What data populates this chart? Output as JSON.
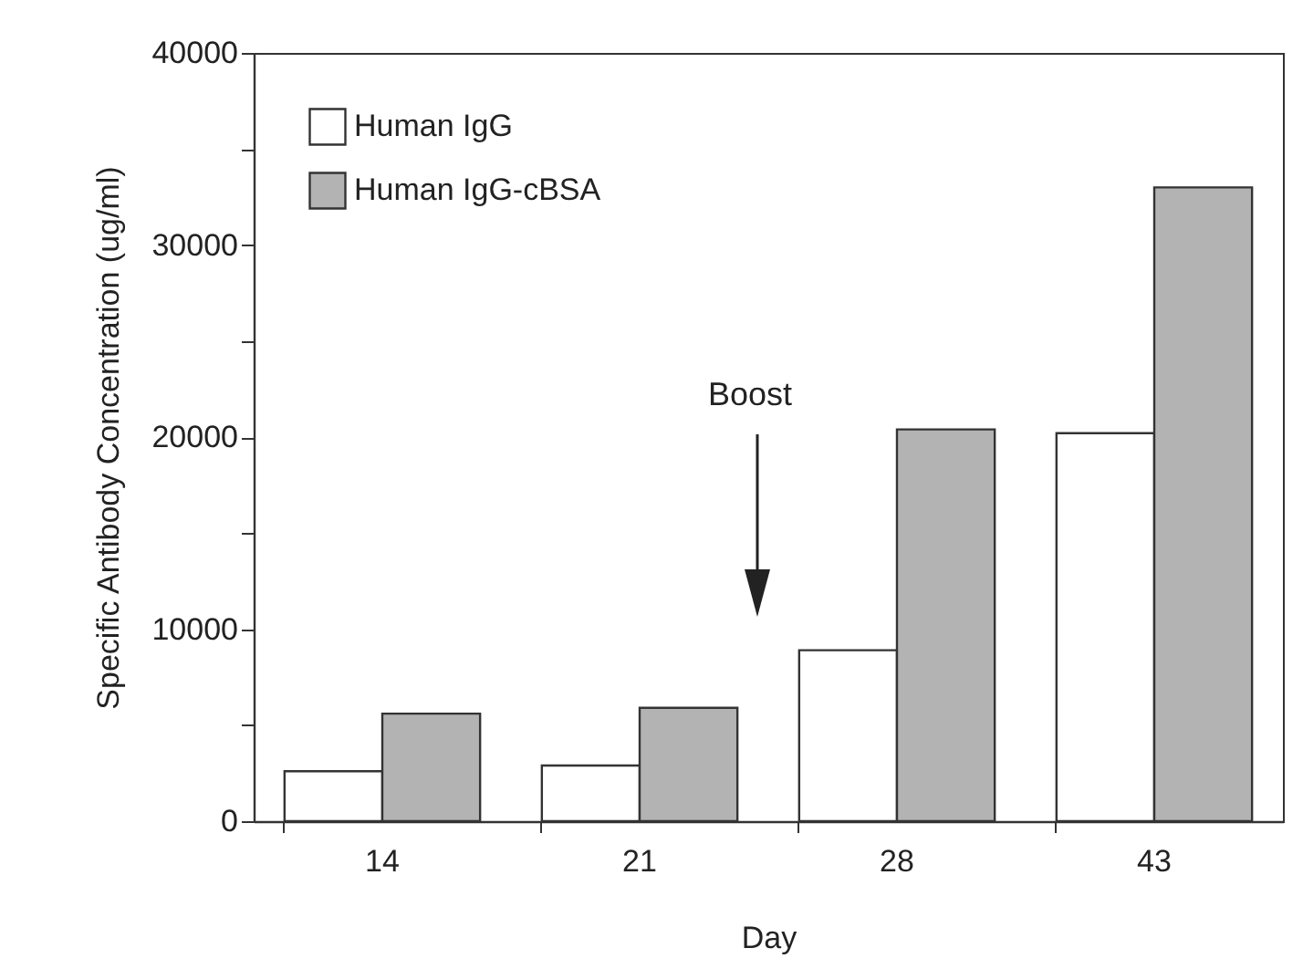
{
  "chart_data": {
    "type": "bar",
    "xlabel": "Day",
    "ylabel": "Specific Antibody Concentration (ug/ml)",
    "categories": [
      "14",
      "21",
      "28",
      "43"
    ],
    "series": [
      {
        "name": "Human IgG",
        "color": "#ffffff",
        "values": [
          2600,
          2900,
          8900,
          20200
        ]
      },
      {
        "name": "Human IgG-cBSA",
        "color": "#b3b3b3",
        "values": [
          5600,
          5900,
          20400,
          33000
        ]
      }
    ],
    "ylim": [
      0,
      40000
    ],
    "yticks": [
      0,
      {
        "value": 5000,
        "label": null
      },
      10000,
      {
        "value": 15000,
        "label": null
      },
      20000,
      {
        "value": 25000,
        "label": null
      },
      30000,
      {
        "value": 35000,
        "label": null
      },
      40000
    ],
    "annotations": [
      "Boost"
    ],
    "legend": "top left",
    "grid": false
  }
}
